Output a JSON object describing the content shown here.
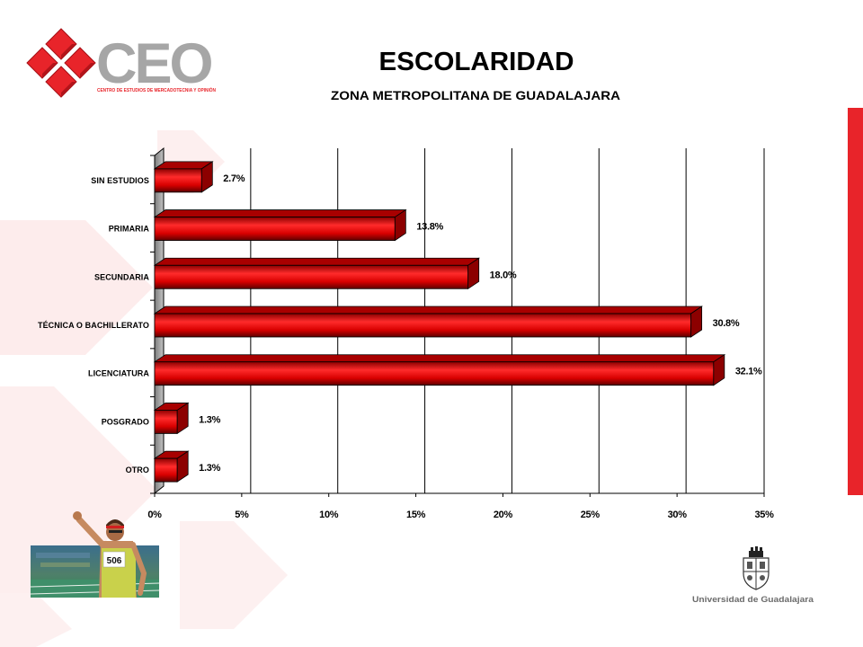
{
  "slide": {
    "title": "ESCOLARIDAD",
    "subtitle": "ZONA METROPOLITANA DE GUADALAJARA"
  },
  "logo": {
    "icon": "ceo-diamond-logo",
    "wordmark": "CEO",
    "tagline": "CENTRO DE ESTUDIOS DE MERCADOTECNIA Y OPINIÓN"
  },
  "photo": {
    "bib_number": "506"
  },
  "footer": {
    "icon": "udg-seal-icon",
    "university": "Universidad de Guadalajara"
  },
  "colors": {
    "accent": "#e8242a",
    "bar": "#e00000",
    "logo_gray": "#a6a6a6"
  },
  "chart_data": {
    "type": "bar",
    "orientation": "horizontal",
    "categories": [
      "SIN ESTUDIOS",
      "PRIMARIA",
      "SECUNDARIA",
      "TÉCNICA O BACHILLERATO",
      "LICENCIATURA",
      "POSGRADO",
      "OTRO"
    ],
    "values": [
      2.7,
      13.8,
      18.0,
      30.8,
      32.1,
      1.3,
      1.3
    ],
    "data_labels": [
      "2.7%",
      "13.8%",
      "18.0%",
      "30.8%",
      "32.1%",
      "1.3%",
      "1.3%"
    ],
    "xlim": [
      0,
      35
    ],
    "x_ticks": [
      0,
      5,
      10,
      15,
      20,
      25,
      30,
      35
    ],
    "x_tick_labels": [
      "0%",
      "5%",
      "10%",
      "15%",
      "20%",
      "25%",
      "30%",
      "35%"
    ],
    "grid": true,
    "legend": "none"
  }
}
